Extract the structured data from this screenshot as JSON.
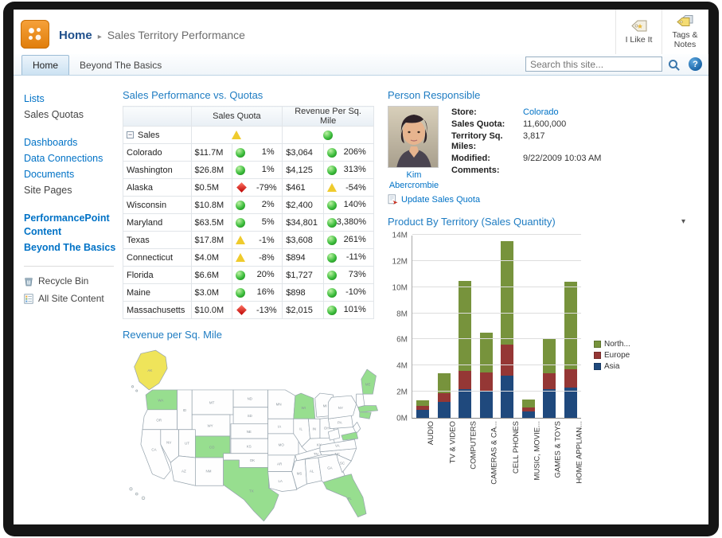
{
  "palette": {
    "accent_blue": "#0072C6",
    "title_blue": "#1E7CC2",
    "kpi_green": "#3DBD3D",
    "kpi_yellow": "#EFCB2D",
    "kpi_red": "#CC0000",
    "map_green": "#97DE8F",
    "map_yellow": "#EFE45A"
  },
  "header": {
    "breadcrumb_root": "Home",
    "breadcrumb_sep": "▸",
    "breadcrumb_page": "Sales Territory Performance",
    "actions": [
      {
        "label": "I Like It",
        "icon": "i-like-it-tag-icon"
      },
      {
        "label": "Tags & Notes",
        "icon": "tags-notes-icon"
      }
    ]
  },
  "tabs": [
    {
      "label": "Home",
      "active": true
    },
    {
      "label": "Beyond The Basics",
      "active": false
    }
  ],
  "search": {
    "placeholder": "Search this site..."
  },
  "sidebar": {
    "items": [
      {
        "label": "Lists",
        "type": "header"
      },
      {
        "label": "Sales Quotas",
        "type": "item"
      },
      {
        "label": "Dashboards",
        "type": "header",
        "gap_before": true
      },
      {
        "label": "Data Connections",
        "type": "header"
      },
      {
        "label": "Documents",
        "type": "header"
      },
      {
        "label": "Site Pages",
        "type": "item"
      },
      {
        "label": "PerformancePoint Content",
        "type": "header",
        "bold": true,
        "gap_before": true
      },
      {
        "label": "Beyond The Basics",
        "type": "header",
        "bold": true
      },
      {
        "label": "Recycle Bin",
        "type": "tool",
        "icon": "recycle-bin-icon",
        "divider_before": true
      },
      {
        "label": "All Site Content",
        "type": "tool",
        "icon": "all-site-content-icon"
      }
    ]
  },
  "kpi_table": {
    "title": "Sales Performance vs. Quotas",
    "columns": [
      "",
      "Sales Quota",
      "Revenue Per Sq. Mile"
    ],
    "root_row": {
      "label": "Sales",
      "quota_indicator": "yellow",
      "revenue_indicator": "green"
    },
    "rows": [
      {
        "state": "Colorado",
        "quota_value": "$11.7M",
        "quota_indicator": "green",
        "quota_pct": "1%",
        "rev_value": "$3,064",
        "rev_indicator": "green",
        "rev_pct": "206%"
      },
      {
        "state": "Washington",
        "quota_value": "$26.8M",
        "quota_indicator": "green",
        "quota_pct": "1%",
        "rev_value": "$4,125",
        "rev_indicator": "green",
        "rev_pct": "313%"
      },
      {
        "state": "Alaska",
        "quota_value": "$0.5M",
        "quota_indicator": "red",
        "quota_pct": "-79%",
        "rev_value": "$461",
        "rev_indicator": "yellow",
        "rev_pct": "-54%"
      },
      {
        "state": "Wisconsin",
        "quota_value": "$10.8M",
        "quota_indicator": "green",
        "quota_pct": "2%",
        "rev_value": "$2,400",
        "rev_indicator": "green",
        "rev_pct": "140%"
      },
      {
        "state": "Maryland",
        "quota_value": "$63.5M",
        "quota_indicator": "green",
        "quota_pct": "5%",
        "rev_value": "$34,801",
        "rev_indicator": "green",
        "rev_pct": "3,380%"
      },
      {
        "state": "Texas",
        "quota_value": "$17.8M",
        "quota_indicator": "yellow",
        "quota_pct": "-1%",
        "rev_value": "$3,608",
        "rev_indicator": "green",
        "rev_pct": "261%"
      },
      {
        "state": "Connecticut",
        "quota_value": "$4.0M",
        "quota_indicator": "yellow",
        "quota_pct": "-8%",
        "rev_value": "$894",
        "rev_indicator": "green",
        "rev_pct": "-11%"
      },
      {
        "state": "Florida",
        "quota_value": "$6.6M",
        "quota_indicator": "green",
        "quota_pct": "20%",
        "rev_value": "$1,727",
        "rev_indicator": "green",
        "rev_pct": "73%"
      },
      {
        "state": "Maine",
        "quota_value": "$3.0M",
        "quota_indicator": "green",
        "quota_pct": "16%",
        "rev_value": "$898",
        "rev_indicator": "green",
        "rev_pct": "-10%"
      },
      {
        "state": "Massachusetts",
        "quota_value": "$10.0M",
        "quota_indicator": "red",
        "quota_pct": "-13%",
        "rev_value": "$2,015",
        "rev_indicator": "green",
        "rev_pct": "101%"
      }
    ]
  },
  "map": {
    "title": "Revenue per Sq. Mile",
    "highlights": {
      "AK": "yellow",
      "WA": "green",
      "CO": "green",
      "TX": "green",
      "WI": "green",
      "FL": "green",
      "ME": "green",
      "MD": "green",
      "MA": "green",
      "CT": "green"
    },
    "state_labels": {
      "AK": "AK",
      "WA": "WA",
      "OR": "OR",
      "CA": "CA",
      "NV": "NV",
      "ID": "ID",
      "MT": "MT",
      "WY": "WY",
      "UT": "UT",
      "CO": "CO",
      "AZ": "AZ",
      "NM": "NM",
      "ND": "ND",
      "SD": "SD",
      "NE": "NE",
      "KS": "KS",
      "OK": "OK",
      "TX": "TX",
      "MN": "MN",
      "IA": "IA",
      "MO": "MO",
      "AR": "AR",
      "LA": "LA",
      "WI": "WI",
      "IL": "IL",
      "MI": "MI",
      "IN": "IN",
      "OH": "OH",
      "KY": "KY",
      "TN": "TN",
      "MS": "MS",
      "AL": "AL",
      "GA": "GA",
      "FL": "FL",
      "SC": "SC",
      "NC": "NC",
      "VA": "VA",
      "PA": "PA",
      "NY": "NY",
      "ME": "ME"
    }
  },
  "person": {
    "title": "Person Responsible",
    "name": "Kim Abercrombie",
    "fields": [
      {
        "label": "Store:",
        "value": "Colorado",
        "link": true
      },
      {
        "label": "Sales Quota:",
        "value": "11,600,000"
      },
      {
        "label": "Territory Sq. Miles:",
        "value": "3,817"
      },
      {
        "label": "Modified:",
        "value": "9/22/2009 10:03 AM"
      },
      {
        "label": "Comments:",
        "value": ""
      }
    ],
    "update_link": "Update Sales Quota"
  },
  "chart_data": {
    "type": "bar",
    "stacked": true,
    "title": "Product By Territory (Sales Quantity)",
    "categories": [
      "AUDIO",
      "TV & VIDEO",
      "COMPUTERS",
      "CAMERAS & CA...",
      "CELL PHONES",
      "MUSIC, MOVIE...",
      "GAMES & TOYS",
      "HOME APPLIAN..."
    ],
    "series": [
      {
        "name": "Asia",
        "color": "#1F497D",
        "values": [
          0.6,
          1.2,
          2.2,
          2.0,
          3.2,
          0.5,
          2.2,
          2.3
        ]
      },
      {
        "name": "Europe",
        "color": "#953735",
        "values": [
          0.3,
          0.7,
          1.4,
          1.5,
          2.4,
          0.3,
          1.2,
          1.4
        ]
      },
      {
        "name": "North...",
        "color": "#77933C",
        "values": [
          0.45,
          1.5,
          6.9,
          3.0,
          7.9,
          0.6,
          2.7,
          6.7
        ]
      }
    ],
    "legend": [
      {
        "label": "North...",
        "color": "#77933C"
      },
      {
        "label": "Europe",
        "color": "#953735"
      },
      {
        "label": "Asia",
        "color": "#1F497D"
      }
    ],
    "units": "millions",
    "y_ticks": [
      "0M",
      "2M",
      "4M",
      "6M",
      "8M",
      "10M",
      "12M",
      "14M"
    ],
    "ylim": [
      0,
      14
    ],
    "legend_position": "right",
    "grid": true
  }
}
